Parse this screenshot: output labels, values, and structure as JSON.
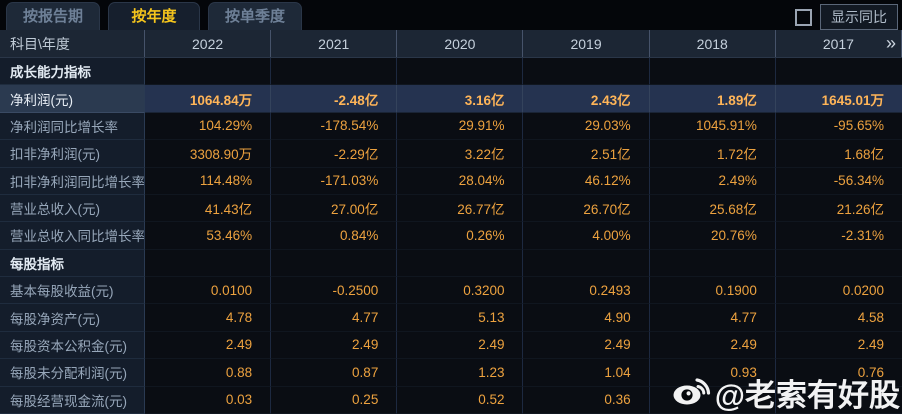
{
  "tab_bar": {
    "tabs": [
      {
        "label": "按报告期",
        "active": false
      },
      {
        "label": "按年度",
        "active": true
      },
      {
        "label": "按单季度",
        "active": false
      }
    ],
    "show_yoy_label": "显示同比",
    "checkbox_checked": false
  },
  "table": {
    "corner_label": "科目\\年度",
    "years": [
      "2022",
      "2021",
      "2020",
      "2019",
      "2018",
      "2017"
    ],
    "more_icon": "»",
    "rows": [
      {
        "type": "section",
        "label": "成长能力指标",
        "values": [
          "",
          "",
          "",
          "",
          "",
          ""
        ]
      },
      {
        "type": "data",
        "highlight": true,
        "label": "净利润(元)",
        "values": [
          "1064.84万",
          "-2.48亿",
          "3.16亿",
          "2.43亿",
          "1.89亿",
          "1645.01万"
        ]
      },
      {
        "type": "data",
        "label": "净利润同比增长率",
        "values": [
          "104.29%",
          "-178.54%",
          "29.91%",
          "29.03%",
          "1045.91%",
          "-95.65%"
        ]
      },
      {
        "type": "data",
        "label": "扣非净利润(元)",
        "values": [
          "3308.90万",
          "-2.29亿",
          "3.22亿",
          "2.51亿",
          "1.72亿",
          "1.68亿"
        ]
      },
      {
        "type": "data",
        "label": "扣非净利润同比增长率",
        "values": [
          "114.48%",
          "-171.03%",
          "28.04%",
          "46.12%",
          "2.49%",
          "-56.34%"
        ]
      },
      {
        "type": "data",
        "label": "营业总收入(元)",
        "values": [
          "41.43亿",
          "27.00亿",
          "26.77亿",
          "26.70亿",
          "25.68亿",
          "21.26亿"
        ]
      },
      {
        "type": "data",
        "label": "营业总收入同比增长率",
        "values": [
          "53.46%",
          "0.84%",
          "0.26%",
          "4.00%",
          "20.76%",
          "-2.31%"
        ]
      },
      {
        "type": "section",
        "label": "每股指标",
        "values": [
          "",
          "",
          "",
          "",
          "",
          ""
        ]
      },
      {
        "type": "data",
        "label": "基本每股收益(元)",
        "values": [
          "0.0100",
          "-0.2500",
          "0.3200",
          "0.2493",
          "0.1900",
          "0.0200"
        ]
      },
      {
        "type": "data",
        "label": "每股净资产(元)",
        "values": [
          "4.78",
          "4.77",
          "5.13",
          "4.90",
          "4.77",
          "4.58"
        ]
      },
      {
        "type": "data",
        "label": "每股资本公积金(元)",
        "values": [
          "2.49",
          "2.49",
          "2.49",
          "2.49",
          "2.49",
          "2.49"
        ]
      },
      {
        "type": "data",
        "label": "每股未分配利润(元)",
        "values": [
          "0.88",
          "0.87",
          "1.23",
          "1.04",
          "0.93",
          "0.76"
        ]
      },
      {
        "type": "data",
        "label": "每股经营现金流(元)",
        "values": [
          "0.03",
          "0.25",
          "0.52",
          "0.36",
          "",
          ""
        ]
      }
    ]
  },
  "watermark": {
    "handle": "@老索有好股",
    "icon": "weibo-icon"
  },
  "colors": {
    "active_tab_text": "#f5c51c",
    "value_orange": "#eda23f",
    "highlight_value": "#ffb558",
    "header_bg": "#1c2634",
    "label_col_bg": "#141d2b",
    "highlight_row_bg": "#2b3a50"
  }
}
